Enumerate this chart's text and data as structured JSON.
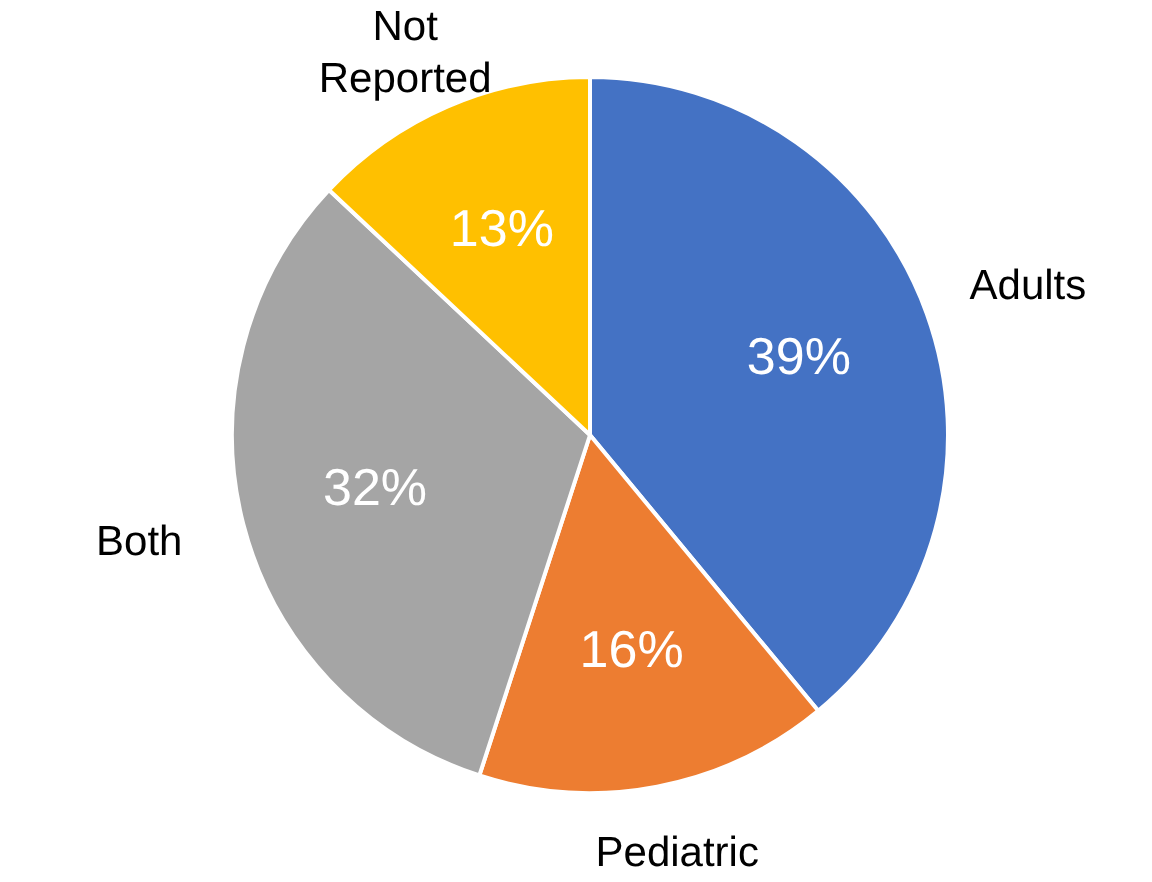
{
  "chart_data": {
    "type": "pie",
    "categories": [
      "Adults",
      "Pediatric",
      "Both",
      "Not Reported"
    ],
    "values": [
      39,
      16,
      32,
      13
    ],
    "colors": [
      "#4472c4",
      "#ed7d31",
      "#a5a5a5",
      "#ffc000"
    ],
    "value_labels": [
      "39%",
      "16%",
      "32%",
      "13%"
    ],
    "legend": false
  }
}
